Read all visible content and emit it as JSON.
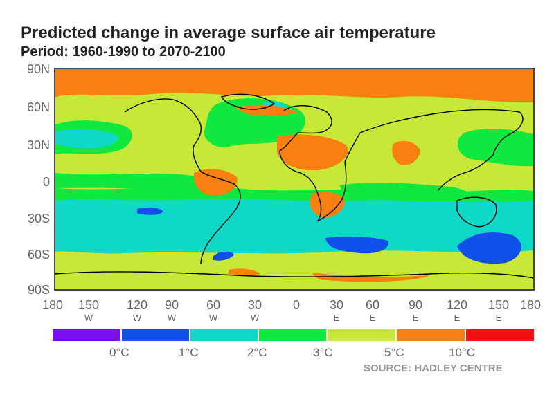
{
  "title": "Predicted change in average surface air temperature",
  "subtitle": "Period: 1960-1990 to 2070-2100",
  "y_axis": {
    "ticks": [
      "90N",
      "60N",
      "30N",
      "0",
      "30S",
      "60S",
      "90S"
    ]
  },
  "x_axis": {
    "ticks": [
      {
        "value": "180",
        "dir": ""
      },
      {
        "value": "150",
        "dir": "W"
      },
      {
        "value": "120",
        "dir": "W"
      },
      {
        "value": "90",
        "dir": "W"
      },
      {
        "value": "60",
        "dir": "W"
      },
      {
        "value": "30",
        "dir": "W"
      },
      {
        "value": "0",
        "dir": ""
      },
      {
        "value": "30",
        "dir": "E"
      },
      {
        "value": "60",
        "dir": "E"
      },
      {
        "value": "90",
        "dir": "E"
      },
      {
        "value": "120",
        "dir": "E"
      },
      {
        "value": "150",
        "dir": "E"
      },
      {
        "value": "180",
        "dir": ""
      }
    ]
  },
  "legend": {
    "colors": [
      "#7a10f0",
      "#1050e8",
      "#10d8c8",
      "#10e840",
      "#c8e838",
      "#f88010",
      "#f01010"
    ],
    "labels": [
      "0°C",
      "1°C",
      "2°C",
      "3°C",
      "5°C",
      "10°C"
    ]
  },
  "map_colors": {
    "band_0_1": "#1050e8",
    "band_1_2": "#10d8c8",
    "band_2_3": "#10e840",
    "band_3_5": "#c8e838",
    "band_5_10": "#f88010",
    "coastline": "#000000"
  },
  "source": "SOURCE: HADLEY CENTRE"
}
